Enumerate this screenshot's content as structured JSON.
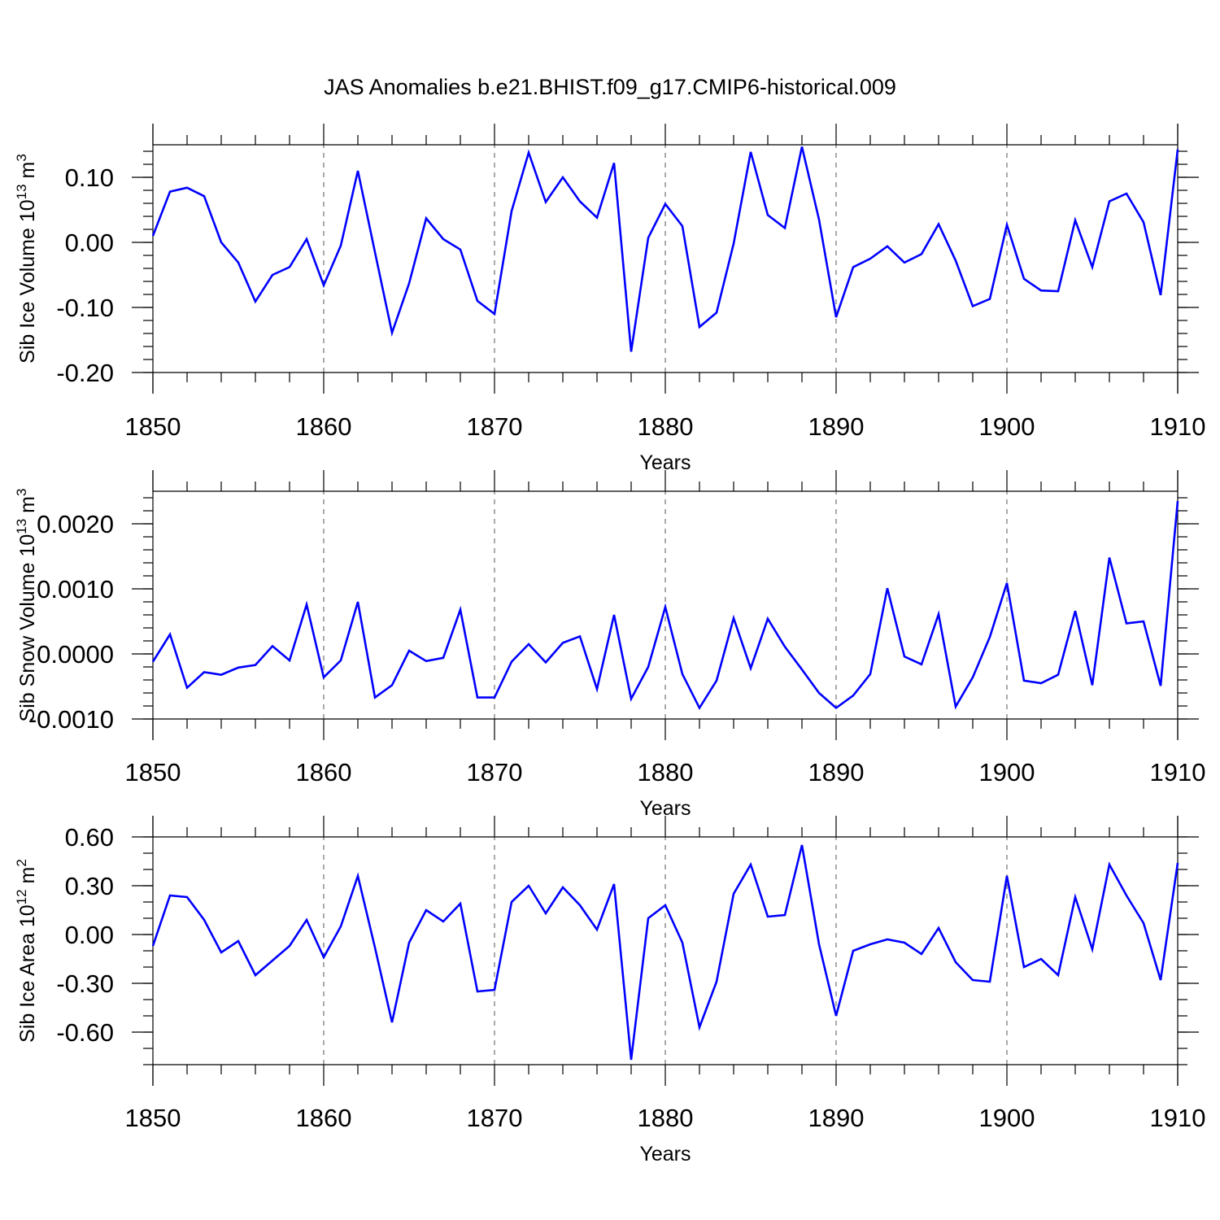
{
  "title": "JAS Anomalies b.e21.BHIST.f09_g17.CMIP6-historical.009",
  "colors": {
    "series": "#0000ff",
    "axis": "#000000"
  },
  "chart_data": [
    {
      "type": "line",
      "id": "volume",
      "ylabel_parts": [
        "Sib Ice Volume 10",
        "13",
        " m",
        "3"
      ],
      "xlabel": "Years",
      "xlim": [
        1850,
        1910
      ],
      "ylim": [
        -0.2,
        0.15
      ],
      "x_ticks": [
        1850,
        1860,
        1870,
        1880,
        1890,
        1900,
        1910
      ],
      "y_ticks": [
        {
          "value": 0.1,
          "label": "0.10"
        },
        {
          "value": 0.0,
          "label": "0.00"
        },
        {
          "value": -0.1,
          "label": "-0.10"
        },
        {
          "value": -0.2,
          "label": "-0.20"
        }
      ],
      "y_minor_step": 0.02,
      "x": [
        1850,
        1851,
        1852,
        1853,
        1854,
        1855,
        1856,
        1857,
        1858,
        1859,
        1860,
        1861,
        1862,
        1863,
        1864,
        1865,
        1866,
        1867,
        1868,
        1869,
        1870,
        1871,
        1872,
        1873,
        1874,
        1875,
        1876,
        1877,
        1878,
        1879,
        1880,
        1881,
        1882,
        1883,
        1884,
        1885,
        1886,
        1887,
        1888,
        1889,
        1890,
        1891,
        1892,
        1893,
        1894,
        1895,
        1896,
        1897,
        1898,
        1899,
        1900,
        1901,
        1902,
        1903,
        1904,
        1905,
        1906,
        1907,
        1908,
        1909,
        1910
      ],
      "series": [
        {
          "name": "Sib Ice Volume",
          "values": [
            0.01,
            0.078,
            0.084,
            0.071,
            0.0,
            -0.031,
            -0.091,
            -0.05,
            -0.038,
            0.005,
            -0.066,
            -0.005,
            0.11,
            -0.015,
            -0.139,
            -0.063,
            0.037,
            0.005,
            -0.011,
            -0.09,
            -0.11,
            0.048,
            0.138,
            0.062,
            0.1,
            0.063,
            0.038,
            0.122,
            -0.168,
            0.007,
            0.059,
            0.025,
            -0.13,
            -0.108,
            -0.002,
            0.139,
            0.042,
            0.022,
            0.147,
            0.035,
            -0.115,
            -0.038,
            -0.025,
            -0.006,
            -0.031,
            -0.018,
            0.028,
            -0.028,
            -0.098,
            -0.087,
            0.027,
            -0.056,
            -0.074,
            -0.075,
            0.034,
            -0.038,
            0.063,
            0.075,
            0.031,
            -0.081,
            0.143
          ]
        }
      ]
    },
    {
      "type": "line",
      "id": "snow",
      "ylabel_parts": [
        "Sib Snow Volume 10",
        "13",
        " m",
        "3"
      ],
      "xlabel": "Years",
      "xlim": [
        1850,
        1910
      ],
      "ylim": [
        -0.001,
        0.0025
      ],
      "x_ticks": [
        1850,
        1860,
        1870,
        1880,
        1890,
        1900,
        1910
      ],
      "y_ticks": [
        {
          "value": 0.002,
          "label": "0.0020"
        },
        {
          "value": 0.001,
          "label": "0.0010"
        },
        {
          "value": 0.0,
          "label": "0.0000"
        },
        {
          "value": -0.001,
          "label": "-0.0010"
        }
      ],
      "y_minor_step": 0.0002,
      "x": [
        1850,
        1851,
        1852,
        1853,
        1854,
        1855,
        1856,
        1857,
        1858,
        1859,
        1860,
        1861,
        1862,
        1863,
        1864,
        1865,
        1866,
        1867,
        1868,
        1869,
        1870,
        1871,
        1872,
        1873,
        1874,
        1875,
        1876,
        1877,
        1878,
        1879,
        1880,
        1881,
        1882,
        1883,
        1884,
        1885,
        1886,
        1887,
        1888,
        1889,
        1890,
        1891,
        1892,
        1893,
        1894,
        1895,
        1896,
        1897,
        1898,
        1899,
        1900,
        1901,
        1902,
        1903,
        1904,
        1905,
        1906,
        1907,
        1908,
        1909,
        1910
      ],
      "series": [
        {
          "name": "Sib Snow Volume",
          "values": [
            -0.00012,
            0.0003,
            -0.00052,
            -0.00028,
            -0.00032,
            -0.00021,
            -0.00017,
            0.00012,
            -0.0001,
            0.00076,
            -0.00036,
            -0.0001,
            0.0008,
            -0.00067,
            -0.00048,
            5e-05,
            -0.00011,
            -6e-05,
            0.00068,
            -0.00067,
            -0.00067,
            -0.00012,
            0.00015,
            -0.00013,
            0.00017,
            0.00027,
            -0.00054,
            0.0006,
            -0.00069,
            -0.0002,
            0.00072,
            -0.00031,
            -0.00083,
            -0.00041,
            0.00055,
            -0.00022,
            0.00054,
            0.00011,
            -0.00024,
            -0.0006,
            -0.00083,
            -0.00064,
            -0.00031,
            0.00101,
            -4e-05,
            -0.00016,
            0.00061,
            -0.00081,
            -0.00036,
            0.00026,
            0.00109,
            -0.00041,
            -0.00045,
            -0.00032,
            0.00066,
            -0.00048,
            0.00148,
            0.00047,
            0.0005,
            -0.00049,
            0.00235
          ]
        }
      ]
    },
    {
      "type": "line",
      "id": "area",
      "ylabel_parts": [
        "Sib Ice Area 10",
        "12",
        " m",
        "2"
      ],
      "xlabel": "Years",
      "xlim": [
        1850,
        1910
      ],
      "ylim": [
        -0.8,
        0.6
      ],
      "x_ticks": [
        1850,
        1860,
        1870,
        1880,
        1890,
        1900,
        1910
      ],
      "y_ticks": [
        {
          "value": 0.6,
          "label": "0.60"
        },
        {
          "value": 0.3,
          "label": "0.30"
        },
        {
          "value": 0.0,
          "label": "0.00"
        },
        {
          "value": -0.3,
          "label": "-0.30"
        },
        {
          "value": -0.6,
          "label": "-0.60"
        }
      ],
      "y_minor_step": 0.1,
      "x": [
        1850,
        1851,
        1852,
        1853,
        1854,
        1855,
        1856,
        1857,
        1858,
        1859,
        1860,
        1861,
        1862,
        1863,
        1864,
        1865,
        1866,
        1867,
        1868,
        1869,
        1870,
        1871,
        1872,
        1873,
        1874,
        1875,
        1876,
        1877,
        1878,
        1879,
        1880,
        1881,
        1882,
        1883,
        1884,
        1885,
        1886,
        1887,
        1888,
        1889,
        1890,
        1891,
        1892,
        1893,
        1894,
        1895,
        1896,
        1897,
        1898,
        1899,
        1900,
        1901,
        1902,
        1903,
        1904,
        1905,
        1906,
        1907,
        1908,
        1909,
        1910
      ],
      "series": [
        {
          "name": "Sib Ice Area",
          "values": [
            -0.07,
            0.24,
            0.23,
            0.09,
            -0.11,
            -0.04,
            -0.25,
            -0.16,
            -0.07,
            0.09,
            -0.14,
            0.05,
            0.36,
            -0.08,
            -0.54,
            -0.05,
            0.15,
            0.08,
            0.19,
            -0.35,
            -0.34,
            0.2,
            0.3,
            0.13,
            0.29,
            0.18,
            0.03,
            0.31,
            -0.77,
            0.1,
            0.18,
            -0.05,
            -0.57,
            -0.29,
            0.25,
            0.43,
            0.11,
            0.12,
            0.55,
            -0.06,
            -0.5,
            -0.1,
            -0.06,
            -0.03,
            -0.05,
            -0.12,
            0.04,
            -0.17,
            -0.28,
            -0.29,
            0.36,
            -0.2,
            -0.15,
            -0.25,
            0.23,
            -0.09,
            0.43,
            0.24,
            0.07,
            -0.28,
            0.44
          ]
        }
      ]
    }
  ]
}
